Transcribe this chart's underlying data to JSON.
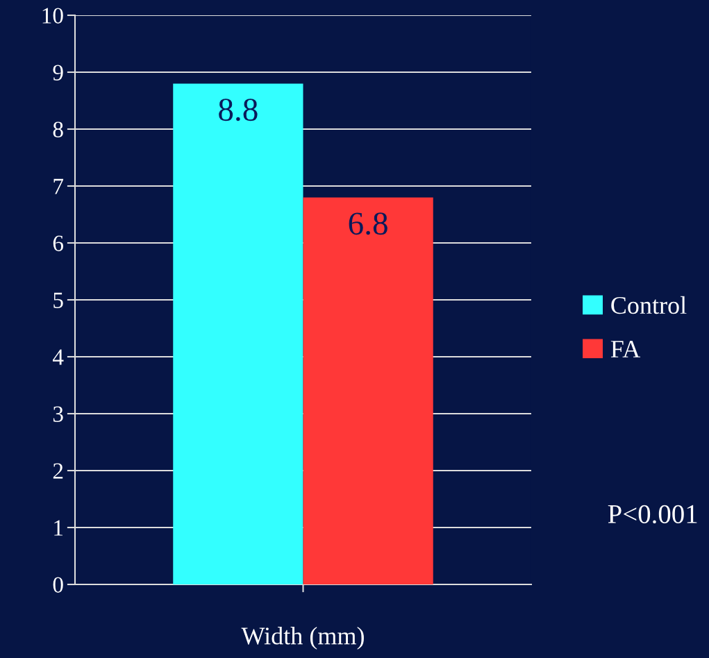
{
  "chart_data": {
    "type": "bar",
    "categories": [
      "Width (mm)"
    ],
    "series": [
      {
        "name": "Control",
        "color": "#33ffff",
        "values": [
          8.8
        ]
      },
      {
        "name": "FA",
        "color": "#ff3838",
        "values": [
          6.8
        ]
      }
    ],
    "ylim": [
      0,
      10
    ],
    "yticks": [
      0,
      1,
      2,
      3,
      4,
      5,
      6,
      7,
      8,
      9,
      10
    ],
    "grid": "y",
    "legend": "right",
    "data_labels": true,
    "annotations": [
      "P<0.001"
    ]
  }
}
